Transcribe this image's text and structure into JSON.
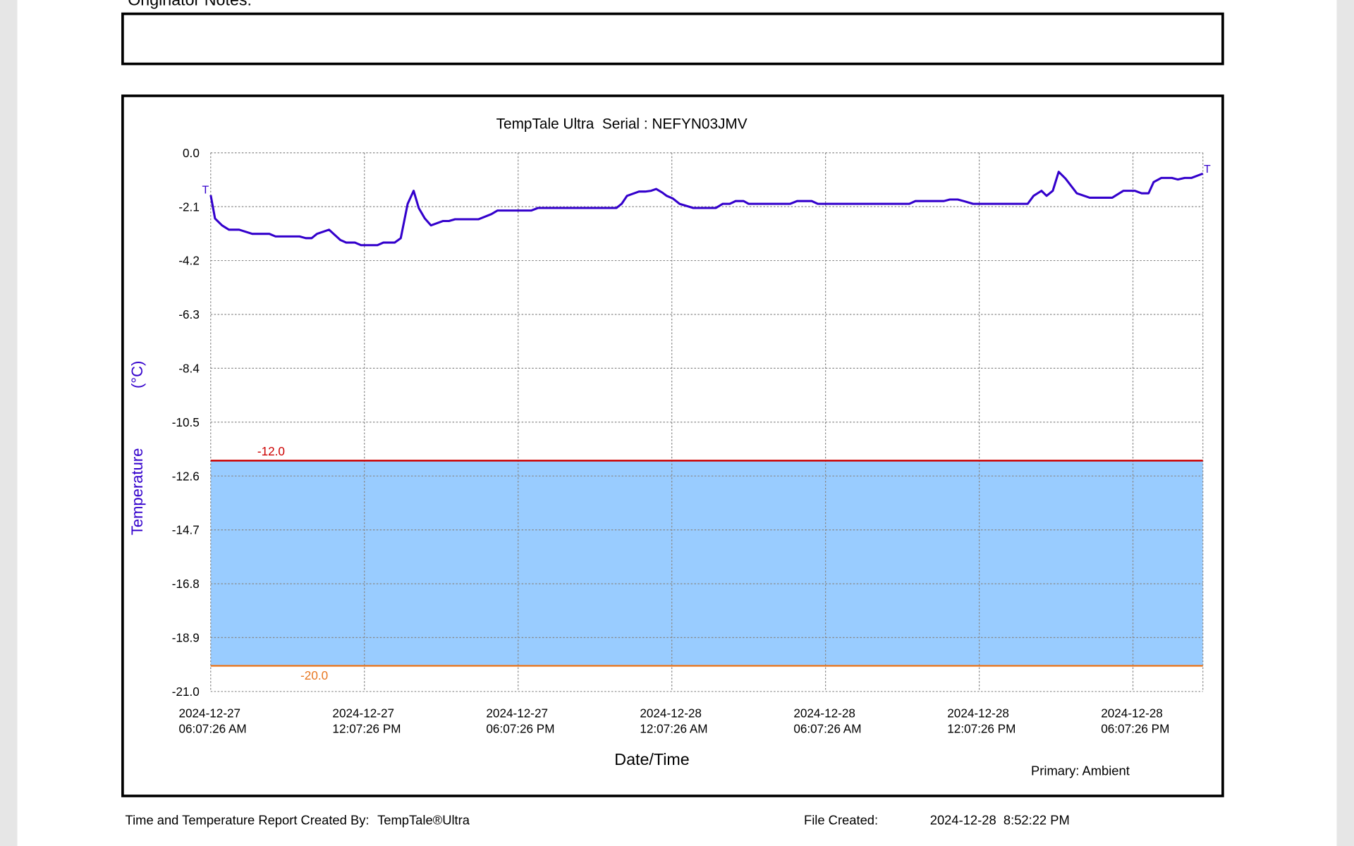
{
  "notes_label": "Originator Notes:",
  "footer": {
    "created_by": "Time and Temperature Report Created By:",
    "product": "TempTale®Ultra",
    "file_created_label": "File Created:",
    "file_created": "2024-12-28  8:52:22 PM"
  },
  "chart_data": {
    "type": "line",
    "title": "TempTale Ultra  Serial : NEFYN03JMV",
    "y_label": "Temperature",
    "y_unit": "(°C)",
    "x_label": "Date/Time",
    "ylim": [
      -21,
      0
    ],
    "yticks": [
      {
        "value": 0,
        "label": "0.0"
      },
      -2.1,
      -4.2,
      -6.3,
      -8.4,
      -10.5,
      -12.6,
      -14.7,
      -16.8,
      -18.9,
      {
        "value": -21,
        "label": "-21.0"
      }
    ],
    "xlim": [
      0,
      38.73
    ],
    "xticks": [
      {
        "value": 0,
        "label": "2024-12-27\n06:07:26 AM"
      },
      {
        "value": 6,
        "label": "2024-12-27\n12:07:26 PM"
      },
      {
        "value": 12,
        "label": "2024-12-27\n06:07:26 PM"
      },
      {
        "value": 18,
        "label": "2024-12-28\n12:07:26 AM"
      },
      {
        "value": 24,
        "label": "2024-12-28\n06:07:26 AM"
      },
      {
        "value": 30,
        "label": "2024-12-28\n12:07:26 PM"
      },
      {
        "value": 36,
        "label": "2024-12-28\n06:07:26 PM"
      }
    ],
    "grid": true,
    "band_color": "#99ccff",
    "thresholds": [
      {
        "value": -12,
        "label": "-12.0",
        "color": "#cc0000"
      },
      {
        "value": -20,
        "label": "-20.0",
        "color": "#e87722"
      }
    ],
    "end_marker": "T",
    "x": [
      0,
      0.17,
      0.44,
      0.71,
      1.11,
      1.62,
      2.29,
      2.53,
      3.47,
      3.71,
      3.94,
      4.15,
      4.62,
      5.06,
      5.29,
      5.63,
      5.87,
      6.51,
      6.74,
      7.18,
      7.42,
      7.69,
      7.92,
      8.12,
      8.36,
      8.6,
      9.07,
      9.3,
      9.54,
      10.45,
      10.96,
      11.19,
      12.51,
      12.78,
      15.84,
      16.04,
      16.25,
      16.72,
      16.96,
      17.19,
      17.39,
      17.63,
      17.8,
      18.04,
      18.3,
      18.84,
      19.72,
      19.99,
      20.26,
      20.49,
      20.8,
      21,
      22.62,
      22.89,
      23.46,
      23.7,
      27.27,
      27.51,
      28.62,
      28.85,
      29.16,
      29.39,
      29.76,
      31.89,
      32.12,
      32.43,
      32.63,
      32.87,
      33.1,
      33.37,
      33.81,
      34.31,
      35.19,
      35.63,
      36.07,
      36.34,
      36.61,
      36.81,
      37.11,
      37.52,
      37.75,
      38.02,
      38.29,
      38.73
    ],
    "series": [
      {
        "name": "Primary: Ambient",
        "color": "#3300cc",
        "values": [
          -1.65,
          -2.56,
          -2.83,
          -3,
          -3,
          -3.16,
          -3.16,
          -3.26,
          -3.26,
          -3.33,
          -3.33,
          -3.16,
          -3,
          -3.4,
          -3.5,
          -3.5,
          -3.6,
          -3.6,
          -3.5,
          -3.5,
          -3.33,
          -1.99,
          -1.48,
          -2.15,
          -2.56,
          -2.83,
          -2.66,
          -2.66,
          -2.59,
          -2.59,
          -2.39,
          -2.25,
          -2.25,
          -2.15,
          -2.15,
          -1.99,
          -1.68,
          -1.51,
          -1.51,
          -1.48,
          -1.41,
          -1.55,
          -1.68,
          -1.78,
          -1.99,
          -2.15,
          -2.15,
          -1.99,
          -1.99,
          -1.88,
          -1.88,
          -1.99,
          -1.99,
          -1.88,
          -1.88,
          -1.99,
          -1.99,
          -1.88,
          -1.88,
          -1.82,
          -1.82,
          -1.88,
          -1.99,
          -1.99,
          -1.68,
          -1.48,
          -1.68,
          -1.48,
          -0.74,
          -1.01,
          -1.58,
          -1.75,
          -1.75,
          -1.48,
          -1.48,
          -1.58,
          -1.58,
          -1.14,
          -0.98,
          -0.98,
          -1.04,
          -0.98,
          -0.98,
          -0.81
        ]
      }
    ]
  }
}
